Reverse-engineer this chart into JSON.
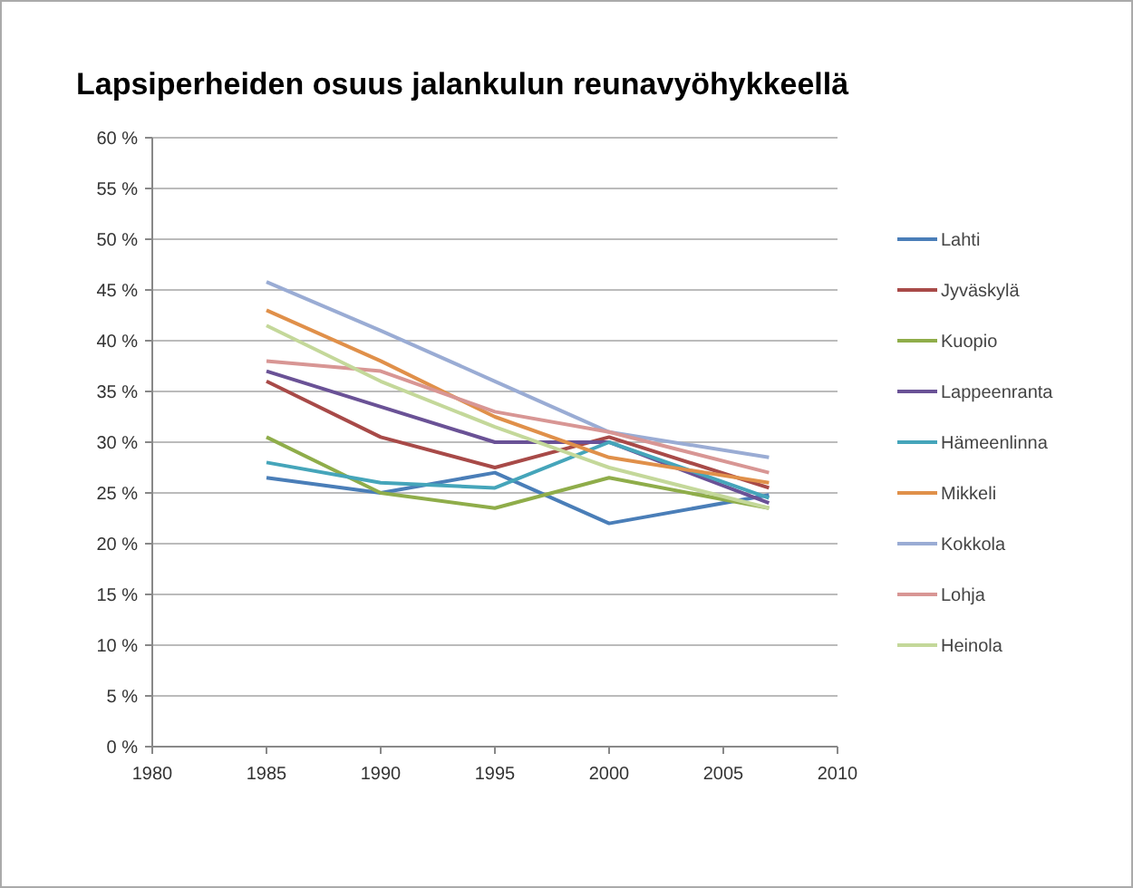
{
  "chart_data": {
    "type": "line",
    "title": "Lapsiperheiden osuus jalankulun reunavyöhykkeellä",
    "x": [
      1985,
      1990,
      1995,
      2000,
      2007
    ],
    "series": [
      {
        "name": "Lahti",
        "color": "#4a7eb8",
        "values": [
          26.5,
          25,
          27,
          22,
          24.8
        ]
      },
      {
        "name": "Jyväskylä",
        "color": "#a84a48",
        "values": [
          36,
          30.5,
          27.5,
          30.5,
          25.5
        ]
      },
      {
        "name": "Kuopio",
        "color": "#8fad4a",
        "values": [
          30.5,
          25,
          23.5,
          26.5,
          23.5
        ]
      },
      {
        "name": "Lappeenranta",
        "color": "#6a5296",
        "values": [
          37,
          33.5,
          30,
          30,
          24
        ]
      },
      {
        "name": "Hämeenlinna",
        "color": "#45a5ba",
        "values": [
          28,
          26,
          25.5,
          30,
          24.5
        ]
      },
      {
        "name": "Mikkeli",
        "color": "#e0904a",
        "values": [
          43,
          38,
          32.5,
          28.5,
          26
        ]
      },
      {
        "name": "Kokkola",
        "color": "#9aacd4",
        "values": [
          45.8,
          41,
          36,
          31,
          28.5
        ]
      },
      {
        "name": "Lohja",
        "color": "#d89694",
        "values": [
          38,
          37,
          33,
          31,
          27
        ]
      },
      {
        "name": "Heinola",
        "color": "#c4d89a",
        "values": [
          41.5,
          36,
          31.5,
          27.5,
          23.5
        ]
      }
    ],
    "xlim": [
      1980,
      2010
    ],
    "xticks": [
      1980,
      1985,
      1990,
      1995,
      2000,
      2005,
      2010
    ],
    "ylim": [
      0,
      60
    ],
    "yticks": [
      {
        "value": 0,
        "label": "0 %"
      },
      {
        "value": 5,
        "label": "5 %"
      },
      {
        "value": 10,
        "label": "10 %"
      },
      {
        "value": 15,
        "label": "15 %"
      },
      {
        "value": 20,
        "label": "20 %"
      },
      {
        "value": 25,
        "label": "25 %"
      },
      {
        "value": 30,
        "label": "30 %"
      },
      {
        "value": 35,
        "label": "35 %"
      },
      {
        "value": 40,
        "label": "40 %"
      },
      {
        "value": 45,
        "label": "45 %"
      },
      {
        "value": 50,
        "label": "50 %"
      },
      {
        "value": 55,
        "label": "55 %"
      },
      {
        "value": 60,
        "label": "60 %"
      }
    ],
    "grid": "y",
    "legend": "right",
    "marker": "none",
    "line_style": "solid"
  }
}
